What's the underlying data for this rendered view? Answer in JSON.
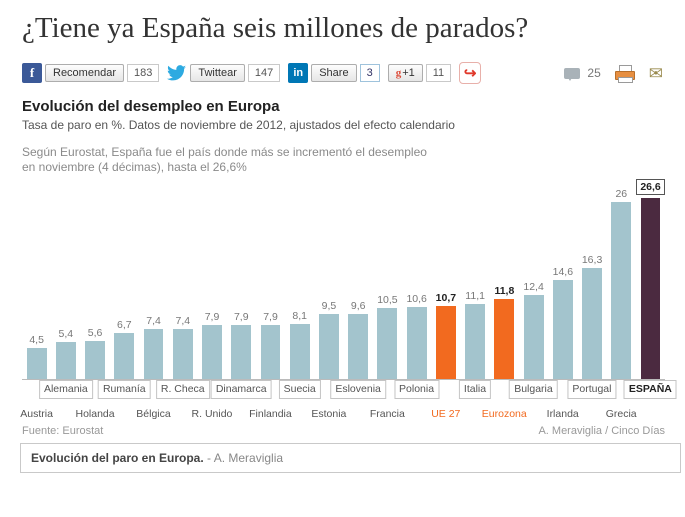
{
  "headline": "¿Tiene ya España seis millones de parados?",
  "share_bar": {
    "facebook": {
      "label": "Recomendar",
      "count": "183"
    },
    "twitter": {
      "label": "Twittear",
      "count": "147"
    },
    "linkedin": {
      "label": "Share",
      "count": "3"
    },
    "gplus": {
      "label": "+1",
      "count": "11"
    },
    "comments_count": "25"
  },
  "chart": {
    "title": "Evolución del desempleo en Europa",
    "subtitle": "Tasa de paro en %. Datos de noviembre de 2012, ajustados del efecto calendario",
    "annotation_line1": "Según Eurostat, España fue el país donde más se incrementó el desempleo",
    "annotation_line2": "en noviembre (4 décimas), hasta el 26,6%",
    "source": "Fuente: Eurostat",
    "credit": "A. Meraviglia / Cinco Días",
    "colors": {
      "bar": "#a3c4cd",
      "highlight": "#f26a1f",
      "spain": "#4b2a40"
    }
  },
  "chart_data": {
    "type": "bar",
    "title": "Evolución del desempleo en Europa",
    "ylabel": "Tasa de paro en %",
    "ylim": [
      0,
      28
    ],
    "grid": false,
    "legend": "none",
    "categories": [
      "Austria",
      "Alemania",
      "Holanda",
      "Rumanía",
      "Bélgica",
      "R. Checa",
      "R. Unido",
      "Dinamarca",
      "Finlandia",
      "Suecia",
      "Estonia",
      "Eslovenia",
      "Francia",
      "Polonia",
      "UE 27",
      "Italia",
      "Eurozona",
      "Bulgaria",
      "Irlanda",
      "Portugal",
      "Grecia",
      "ESPAÑA"
    ],
    "values": [
      4.5,
      5.4,
      5.6,
      6.7,
      7.4,
      7.4,
      7.9,
      7.9,
      7.9,
      8.1,
      9.5,
      9.6,
      10.5,
      10.6,
      10.7,
      11.1,
      11.8,
      12.4,
      14.6,
      16.3,
      26,
      26.6
    ],
    "value_labels": [
      "4,5",
      "5,4",
      "5,6",
      "6,7",
      "7,4",
      "7,4",
      "7,9",
      "7,9",
      "7,9",
      "8,1",
      "9,5",
      "9,6",
      "10,5",
      "10,6",
      "10,7",
      "11,1",
      "11,8",
      "12,4",
      "14,6",
      "16,3",
      "26",
      "26,6"
    ],
    "bar_styles": [
      "normal",
      "normal",
      "normal",
      "normal",
      "normal",
      "normal",
      "normal",
      "normal",
      "normal",
      "normal",
      "normal",
      "normal",
      "normal",
      "normal",
      "highlight",
      "normal",
      "highlight",
      "normal",
      "normal",
      "normal",
      "normal",
      "spain"
    ],
    "label_rows": [
      2,
      1,
      2,
      1,
      2,
      1,
      2,
      1,
      2,
      1,
      2,
      1,
      2,
      1,
      2,
      1,
      2,
      1,
      2,
      1,
      2,
      1
    ]
  },
  "caption": {
    "title": "Evolución del paro en Europa.",
    "credit": " - A. Meraviglia"
  }
}
